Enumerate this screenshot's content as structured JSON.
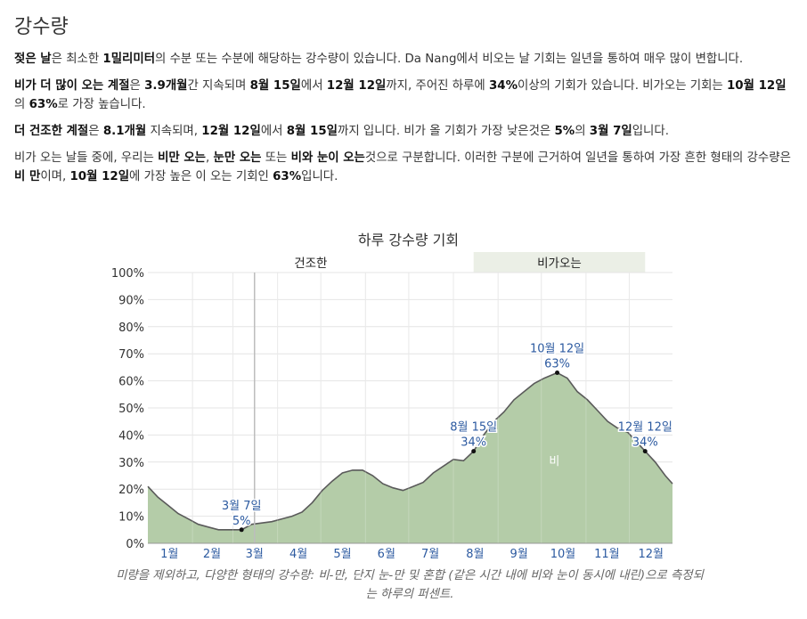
{
  "section": {
    "title": "강수량",
    "paragraphs": [
      [
        {
          "t": "젖은 날",
          "b": true
        },
        {
          "t": "은 최소한 "
        },
        {
          "t": "1밀리미터",
          "b": true
        },
        {
          "t": "의 수분 또는 수분에 해당하는 강수량이 있습니다. Da Nang에서 비오는 날 기회는 일년을 통하여 매우 많이 변합니다."
        }
      ],
      [
        {
          "t": "비가 더 많이 오는 계절",
          "b": true
        },
        {
          "t": "은 "
        },
        {
          "t": "3.9개월",
          "b": true
        },
        {
          "t": "간 지속되며 "
        },
        {
          "t": "8월 15일",
          "b": true
        },
        {
          "t": "에서 "
        },
        {
          "t": "12월 12일",
          "b": true
        },
        {
          "t": "까지, 주어진 하루에 "
        },
        {
          "t": "34%",
          "b": true
        },
        {
          "t": "이상의 기회가 있습니다. 비가오는 기회는 "
        },
        {
          "t": "10월 12일",
          "b": true
        },
        {
          "t": "의 "
        },
        {
          "t": "63%",
          "b": true
        },
        {
          "t": "로 가장 높습니다."
        }
      ],
      [
        {
          "t": "더 건조한 계절",
          "b": true
        },
        {
          "t": "은 "
        },
        {
          "t": "8.1개월",
          "b": true
        },
        {
          "t": " 지속되며, "
        },
        {
          "t": "12월 12일",
          "b": true
        },
        {
          "t": "에서 "
        },
        {
          "t": "8월 15일",
          "b": true
        },
        {
          "t": "까지 입니다. 비가 올 기회가 가장 낮은것은 "
        },
        {
          "t": "5%",
          "b": true
        },
        {
          "t": "의 "
        },
        {
          "t": "3월 7일",
          "b": true
        },
        {
          "t": "입니다."
        }
      ],
      [
        {
          "t": "비가 오는 날들 중에, 우리는 "
        },
        {
          "t": "비만 오는",
          "b": true
        },
        {
          "t": ", "
        },
        {
          "t": "눈만 오는",
          "b": true
        },
        {
          "t": " 또는 "
        },
        {
          "t": "비와 눈이 오는",
          "b": true
        },
        {
          "t": "것으로 구분합니다. 이러한 구분에 근거하여 일년을 통하여 가장 흔한 형태의 강수량은 "
        },
        {
          "t": "비 만",
          "b": true
        },
        {
          "t": "이며, "
        },
        {
          "t": "10월 12일",
          "b": true
        },
        {
          "t": "에 가장 높은 이 오는 기회인 "
        },
        {
          "t": "63%",
          "b": true
        },
        {
          "t": "입니다."
        }
      ]
    ]
  },
  "chart_data": {
    "type": "area",
    "title": "하루 강수량 기회",
    "caption": "미량을 제외하고, 다양한 형태의 강수량: 비-만, 단지 눈-만 및 혼합 (같은 시간 내에 비와 눈이 동시에 내린)으로 측정되는 하루의 퍼센트.",
    "xlabel": "",
    "ylabel": "",
    "ylim": [
      0,
      100
    ],
    "yticks": [
      0,
      10,
      20,
      30,
      40,
      50,
      60,
      70,
      80,
      90,
      100
    ],
    "ytick_labels": [
      "0%",
      "10%",
      "20%",
      "30%",
      "40%",
      "50%",
      "60%",
      "70%",
      "80%",
      "90%",
      "100%"
    ],
    "xlim_days": [
      1,
      365
    ],
    "months": [
      "1월",
      "2월",
      "3월",
      "4월",
      "5월",
      "6월",
      "7월",
      "8월",
      "9월",
      "10월",
      "11월",
      "12월"
    ],
    "grid": true,
    "seasons": [
      {
        "label": "건조한",
        "start_day": 1,
        "end_day": 227,
        "color": "#ffffff"
      },
      {
        "label": "비가오는",
        "start_day": 227,
        "end_day": 346,
        "color": "#ebefe6"
      }
    ],
    "series": [
      {
        "name": "비",
        "color": "#b4cca8",
        "line_color": "#5a5a5a",
        "x": [
          1,
          8,
          15,
          22,
          29,
          36,
          43,
          50,
          57,
          66,
          73,
          80,
          87,
          94,
          101,
          108,
          115,
          122,
          129,
          136,
          143,
          150,
          157,
          164,
          171,
          178,
          185,
          192,
          199,
          206,
          213,
          220,
          227,
          234,
          241,
          248,
          255,
          262,
          269,
          276,
          285,
          292,
          299,
          306,
          313,
          320,
          327,
          334,
          346,
          353,
          360,
          365
        ],
        "y": [
          21,
          17,
          14,
          11,
          9,
          7,
          6,
          5,
          5,
          5,
          7,
          7.5,
          8,
          9,
          10,
          11.5,
          15,
          19.5,
          23,
          26,
          27,
          27,
          25,
          22,
          20.5,
          19.5,
          21,
          22.5,
          26,
          28.5,
          31,
          30.5,
          34,
          40,
          45,
          48.5,
          53,
          56,
          59,
          61,
          63,
          61,
          56,
          53,
          49,
          45,
          42.5,
          41,
          34,
          30,
          25,
          22
        ]
      }
    ],
    "series_label": {
      "text": "비",
      "x_day": 283,
      "y": 29
    },
    "annotations": [
      {
        "day": 66,
        "value": 5,
        "date": "3월 7일",
        "pct": "5%"
      },
      {
        "day": 227,
        "value": 34,
        "date": "8월 15일",
        "pct": "34%"
      },
      {
        "day": 285,
        "value": 63,
        "date": "10월 12일",
        "pct": "63%"
      },
      {
        "day": 346,
        "value": 34,
        "date": "12월 12일",
        "pct": "34%"
      }
    ],
    "marker_day": 75
  }
}
